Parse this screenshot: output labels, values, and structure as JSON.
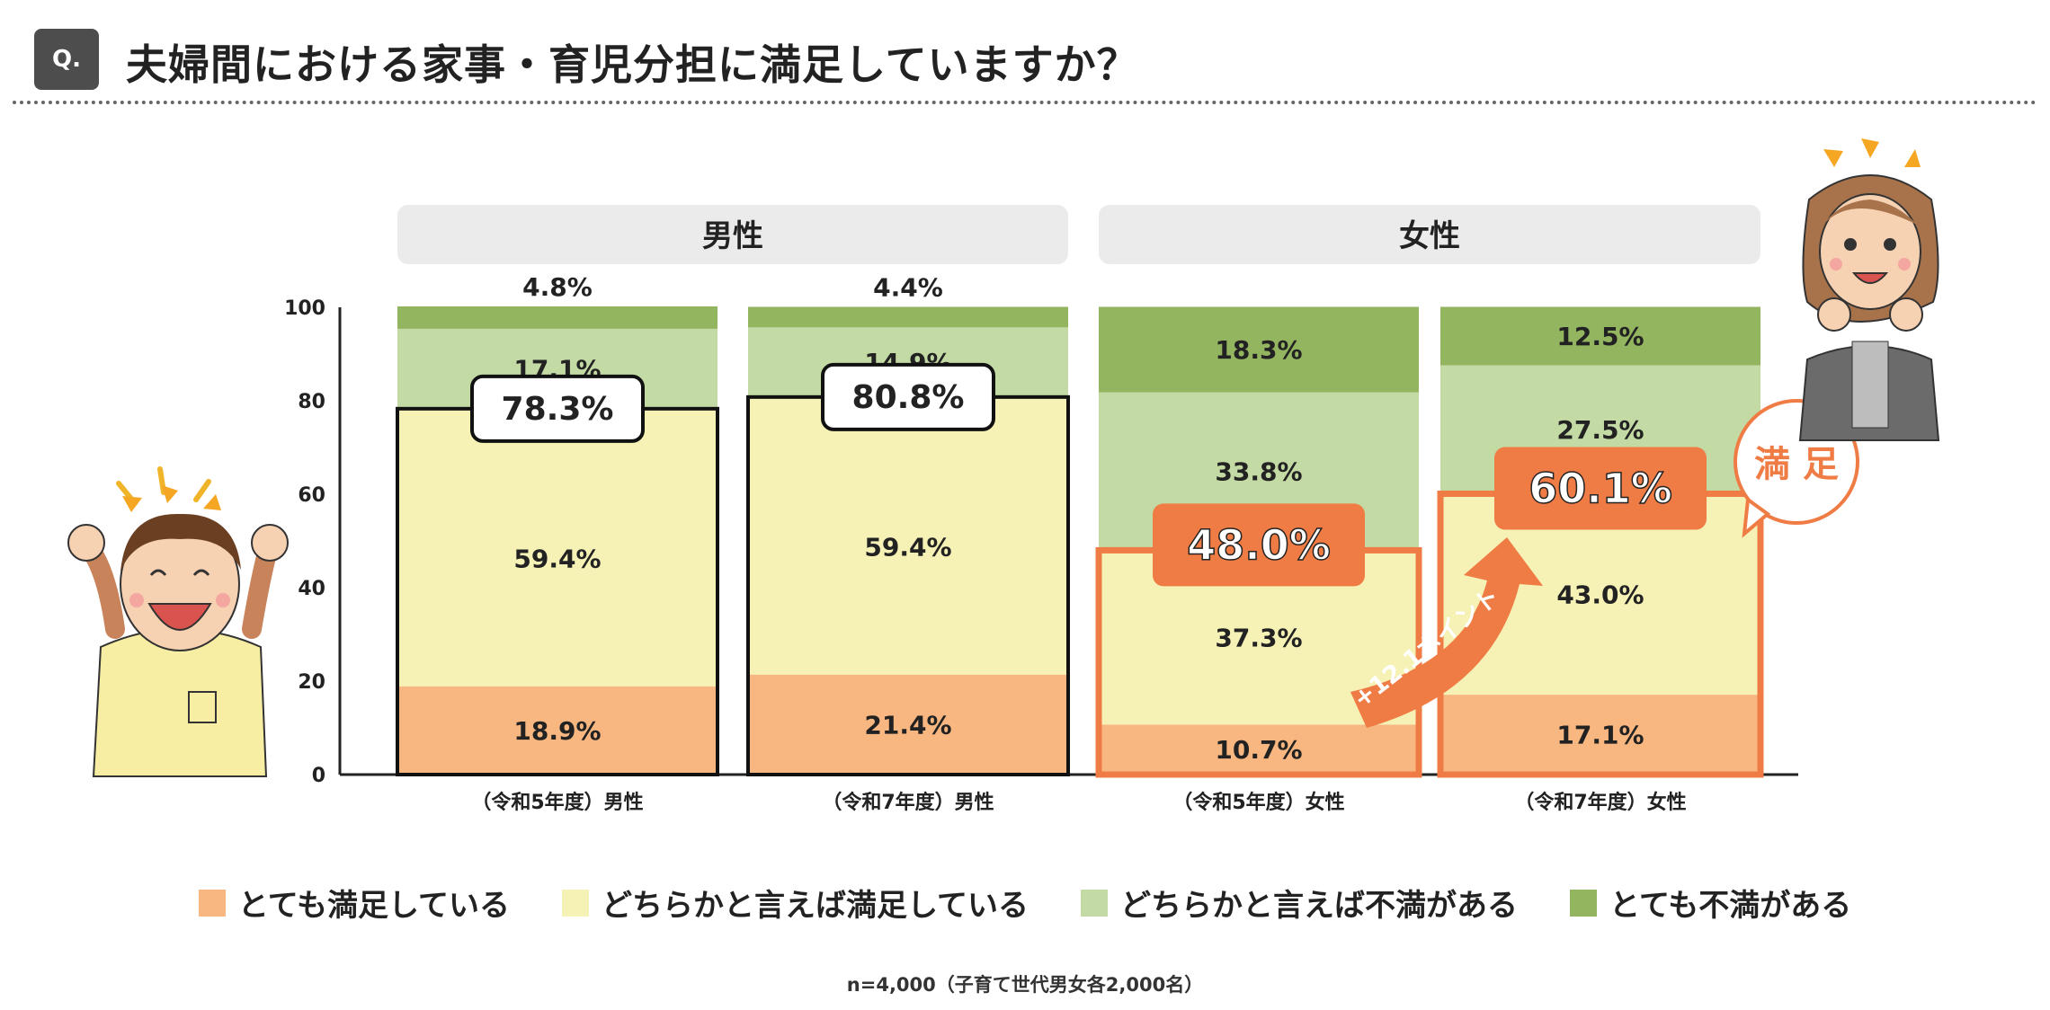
{
  "header": {
    "badge": "Q.",
    "title": "夫婦間における家事・育児分担に満足していますか？"
  },
  "chart_data": {
    "type": "bar",
    "stacked": true,
    "title": "夫婦間における家事・育児分担に満足していますか？",
    "y_ticks": [
      "0",
      "20",
      "40",
      "60",
      "80",
      "100"
    ],
    "ylim": [
      0,
      100
    ],
    "groups": [
      {
        "label": "男性",
        "bars": [
          0,
          1
        ]
      },
      {
        "label": "女性",
        "bars": [
          2,
          3
        ]
      }
    ],
    "categories": [
      "（令和5年度）男性",
      "（令和7年度）男性",
      "（令和5年度）女性",
      "（令和7年度）女性"
    ],
    "series": [
      {
        "name": "とても満足している",
        "color": "#f8b680",
        "values": [
          18.9,
          21.4,
          10.7,
          17.1
        ],
        "labels": [
          "18.9%",
          "21.4%",
          "10.7%",
          "17.1%"
        ]
      },
      {
        "name": "どちらかと言えば満足している",
        "color": "#f6f1b5",
        "values": [
          59.4,
          59.4,
          37.3,
          43.0
        ],
        "labels": [
          "59.4%",
          "59.4%",
          "37.3%",
          "43.0%"
        ]
      },
      {
        "name": "どちらかと言えば不満がある",
        "color": "#c3daa4",
        "values": [
          17.1,
          14.9,
          33.8,
          27.5
        ],
        "labels": [
          "17.1%",
          "14.9%",
          "33.8%",
          "27.5%"
        ]
      },
      {
        "name": "とても不満がある",
        "color": "#93b560",
        "values": [
          4.8,
          4.4,
          18.3,
          12.5
        ],
        "labels": [
          "4.8%",
          "4.4%",
          "18.3%",
          "12.5%"
        ]
      }
    ],
    "satisfied_totals": {
      "values": [
        78.3,
        80.8,
        48.0,
        60.1
      ],
      "labels": [
        "78.3%",
        "80.8%",
        "48.0%",
        "60.1%"
      ]
    },
    "annotations": {
      "increase": "+12.1ポイント",
      "satisfied_bubble": "満 足"
    },
    "accent_color": "#f07c45"
  },
  "footnote": "n=4,000（子育て世代男女各2,000名）"
}
